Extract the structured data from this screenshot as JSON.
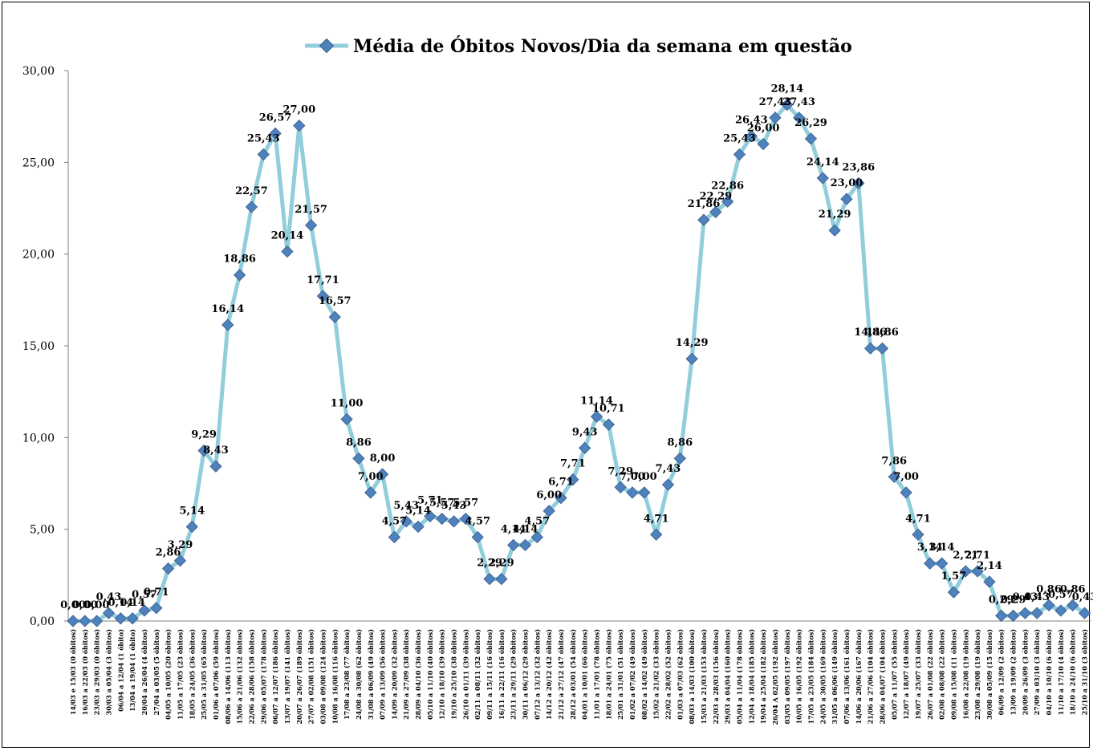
{
  "chart_data": {
    "type": "line",
    "title": "",
    "xlabel": "",
    "ylabel": "",
    "ylim": [
      0,
      30
    ],
    "yticks": [
      "0,00",
      "5,00",
      "10,00",
      "15,00",
      "20,00",
      "25,00",
      "30,00"
    ],
    "grid": false,
    "legend": "top",
    "series": [
      {
        "name": "Média de Óbitos Novos/Dia da semana em questão",
        "color": "#92CDDC",
        "marker_color": "#4F81BD",
        "values": [
          0,
          0,
          0,
          0.43,
          0.14,
          0.14,
          0.57,
          0.71,
          2.86,
          3.29,
          5.14,
          9.29,
          8.43,
          16.14,
          18.86,
          22.57,
          25.43,
          26.57,
          20.14,
          27.0,
          21.57,
          17.71,
          16.57,
          11.0,
          8.86,
          7.0,
          8.0,
          4.57,
          5.43,
          5.14,
          5.71,
          5.57,
          5.43,
          5.57,
          4.57,
          2.29,
          2.29,
          4.14,
          4.14,
          4.57,
          6.0,
          6.71,
          7.71,
          9.43,
          11.14,
          10.71,
          7.29,
          7.0,
          7.0,
          4.71,
          7.43,
          8.86,
          14.29,
          21.86,
          22.29,
          22.86,
          25.43,
          26.43,
          26.0,
          27.43,
          28.14,
          27.43,
          26.29,
          24.14,
          21.29,
          23.0,
          23.86,
          14.86,
          14.86,
          7.86,
          7.0,
          4.71,
          3.14,
          3.14,
          1.57,
          2.71,
          2.71,
          2.14,
          0.29,
          0.29,
          0.43,
          0.43,
          0.86,
          0.57,
          0.86,
          0.43
        ],
        "labels": [
          "0,00",
          "0,00",
          "0,00",
          "0,43",
          "0,14",
          "0,14",
          "0,57",
          "0,71",
          "2,86",
          "3,29",
          "5,14",
          "9,29",
          "8,43",
          "16,14",
          "18,86",
          "22,57",
          "25,43",
          "26,57",
          "20,14",
          "27,00",
          "21,57",
          "17,71",
          "16,57",
          "11,00",
          "8,86",
          "7,00",
          "8,00",
          "4,57",
          "5,43",
          "5,14",
          "5,71",
          "5,57",
          "5,43",
          "5,57",
          "4,57",
          "2,29",
          "2,29",
          "4,14",
          "4,14",
          "4,57",
          "6,00",
          "6,71",
          "7,71",
          "9,43",
          "11,14",
          "10,71",
          "7,29",
          "7,00",
          "7,00",
          "4,71",
          "7,43",
          "8,86",
          "14,29",
          "21,86",
          "22,29",
          "22,86",
          "25,43",
          "26,43",
          "26,00",
          "27,43",
          "28,14",
          "27,43",
          "26,29",
          "24,14",
          "21,29",
          "23,00",
          "23,86",
          "14,86",
          "14,86",
          "7,86",
          "7,00",
          "4,71",
          "3,14",
          "3,14",
          "1,57",
          "2,71",
          "2,71",
          "2,14",
          "0,29",
          "0,29",
          "0,43",
          "0,43",
          "0,86",
          "0,57",
          "0,86",
          "0,43"
        ]
      }
    ],
    "categories": [
      "14/03 e 15/03 (0 óbitos)",
      "16/03 a 22/03 (0 óbitos)",
      "23/03 a 29/03 (0 óbitos)",
      "30/03 a 05/04 (3 óbitos)",
      "06/04 a 12/04 (1 óbito)",
      "13/04 a 19/04 (1 óbito)",
      "20/04 a 26/04 (4 óbitos)",
      "27/04 a 03/05 (5 óbitos)",
      "04/05 a 10/05 (20 óbitos)",
      "11/05 a 17/05 (23 óbitos)",
      "18/05 a 24/05 (36 óbitos)",
      "25/05 a 31/05 (65 óbitos)",
      "01/06 a 07/06 (59 óbitos)",
      "08/06 a 14/06 (113 óbitos)",
      "15/06 a 21/06 (132 óbitos)",
      "22/06 a 28/06 (158 óbitos)",
      "29/06 a 05/07 (178 óbitos)",
      "06/07 a 12/07 (186 óbitos)",
      "13/07 a 19/07 (141 óbitos)",
      "20/07 a 26/07 (189 óbitos)",
      "27/07 a 02/08 (151 óbitos)",
      "03/08 a 09/08 (124 óbitos)",
      "10/08 a 16/08 (116 óbitos)",
      "17/08 a 23/08 (77 óbitos)",
      "24/08 a 30/08 (62 óbitos)",
      "31/08 a 06/09 (49 óbitos)",
      "07/09 a 13/09 (56 óbitos)",
      "14/09 a 20/09 (32 óbitos)",
      "21/09 a 27/09 (38 óbitos)",
      "28/09 a 04/10 (36 óbitos)",
      "05/10 a 11/10 (40 óbitos)",
      "12/10 a 18/10 (39 óbitos)",
      "19/10 a 25/10 (38 óbitos)",
      "26/10 a 01/11 (39 óbitos)",
      "02/11 a 08/11 (32 óbitos)",
      "09/11 a 15/11 (16 óbitos)",
      "16/11 a 22/11 (16 óbitos)",
      "23/11 a 29/11 (29 óbitos)",
      "30/11 a 06/12 (29 óbitos)",
      "07/12 a 13/12 (32 óbitos)",
      "14/12 a 20/12 (42 óbitos)",
      "21/12 a 27/12 (47 óbitos)",
      "28/12 a 03/01 (54 óbitos)",
      "04/01 a 10/01 (66 óbitos)",
      "11/01 a 17/01 (78 óbitos)",
      "18/01 a 24/01 (75 óbitos)",
      "25/01 a 31/01 (51 óbitos)",
      "01/02 a 07/02 (49 óbitos)",
      "08/02 a 14/02 (49 óbitos)",
      "15/02 a 21/02 (33 óbitos)",
      "22/02 a 28/02 (52 óbitos)",
      "01/03 a 07/03 (62 óbitos)",
      "08/03 a 14/03 (100 óbitos)",
      "15/03 a 21/03 (153 óbitos)",
      "22/03 a 28/03 (156 óbitos)",
      "29/03 a 04/04 (160 óbitos)",
      "05/04 a 11/04 (178 óbitos)",
      "12/04 a 18/04 (185 óbitos)",
      "19/04 a 25/04 (182 óbitos)",
      "26/04 A 02/05 (192 óbitos)",
      "03/05 a 09/05 (197 óbitos)",
      "10/05 a 16/05 (192 óbitos)",
      "17/05 a 23/05 (184 óbitos)",
      "24/05 a 30/05 (169 óbitos)",
      "31/05 a 06/06 (149 óbitos)",
      "07/06 a 13/06 (161 óbitos)",
      "14/06 a 20/06 (167 óbitos)",
      "21/06 a 27/06 (104 óbitos)",
      "28/06 a 04/07 (104 óbitos)",
      "05/07 a 11/07 (55 óbitos)",
      "12/07 a 18/07 (49 óbitos)",
      "19/07 a 25/07 (33 óbitos)",
      "26/07 a 01/08 (22 óbitos)",
      "02/08 a 08/08 (22 óbitos)",
      "09/08 a 15/08 (11 óbitos)",
      "16/08 a 22/08 (19 óbitos)",
      "23/08 a 29/08 (19 óbitos)",
      "30/08 a 05/09 (15 óbitos)",
      "06/09 a 12/09 (2 óbitos)",
      "13/09 a 19/09 (2 óbitos)",
      "20/09 a 26/09 (3 óbitos)",
      "27/09 a 03/10 (3 óbitos)",
      "04/10 a 10/10 (6 óbitos)",
      "11/10 a 17/10 (4 óbitos)",
      "18/10 a 24/10 (6 óbitos)",
      "25/10 a 31/10 (3 óbitos)"
    ]
  }
}
